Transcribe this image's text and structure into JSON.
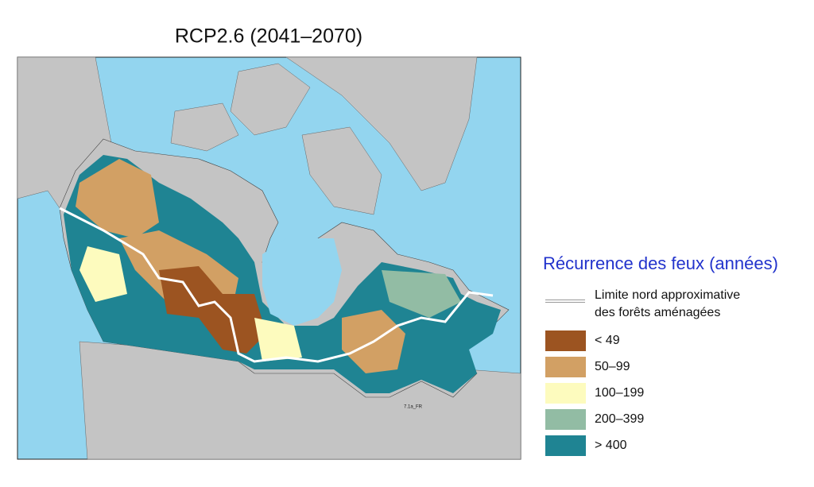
{
  "title": "RCP2.6 (2041–2070)",
  "map_label": "7.1a_FR",
  "legend": {
    "title": "Récurrence des feux (années)",
    "line_label": [
      "Limite nord approximative",
      "des forêts aménagées"
    ],
    "items": [
      {
        "label": "< 49",
        "color": "#9c5421"
      },
      {
        "label": "50–99",
        "color": "#d2a064"
      },
      {
        "label": "100–199",
        "color": "#fdfbbe"
      },
      {
        "label": "200–399",
        "color": "#92bca4"
      },
      {
        "label": "> 400",
        "color": "#1f8493"
      }
    ]
  }
}
